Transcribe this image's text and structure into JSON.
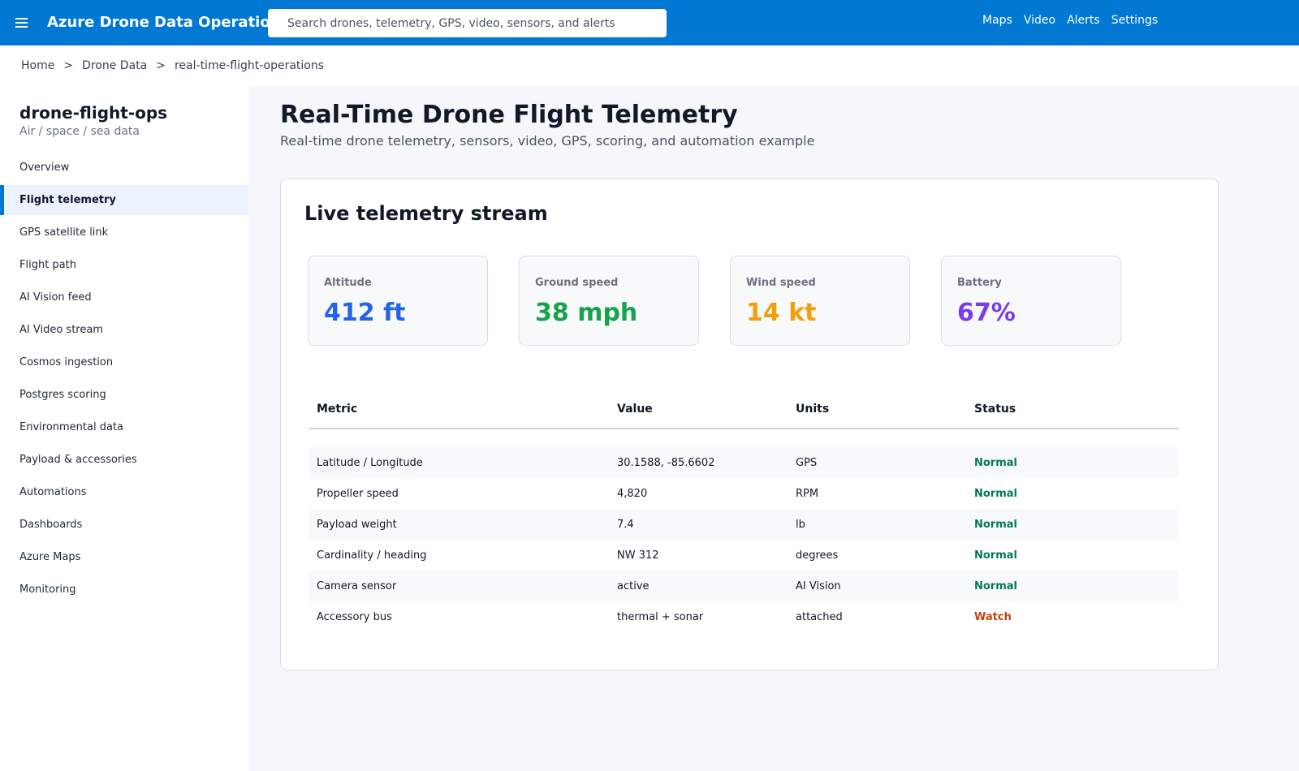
{
  "header": {
    "app_title": "Azure Drone Data Operations",
    "search_placeholder": "Search drones, telemetry, GPS, video, sensors, and alerts",
    "nav": [
      "Maps",
      "Video",
      "Alerts",
      "Settings"
    ],
    "brand_color": "#0078d4"
  },
  "breadcrumb": [
    "Home",
    "Drone Data",
    "real-time-flight-operations"
  ],
  "sidebar": {
    "workspace_name": "drone-flight-ops",
    "workspace_desc": "Air / space / sea data",
    "items": [
      {
        "label": "Overview",
        "active": false
      },
      {
        "label": "Flight telemetry",
        "active": true
      },
      {
        "label": "GPS satellite link",
        "active": false
      },
      {
        "label": "Flight path",
        "active": false
      },
      {
        "label": "AI Vision feed",
        "active": false
      },
      {
        "label": "AI Video stream",
        "active": false
      },
      {
        "label": "Cosmos ingestion",
        "active": false
      },
      {
        "label": "Postgres scoring",
        "active": false
      },
      {
        "label": "Environmental data",
        "active": false
      },
      {
        "label": "Payload & accessories",
        "active": false
      },
      {
        "label": "Automations",
        "active": false
      },
      {
        "label": "Dashboards",
        "active": false
      },
      {
        "label": "Azure Maps",
        "active": false
      },
      {
        "label": "Monitoring",
        "active": false
      }
    ]
  },
  "main": {
    "title": "Real-Time Drone Flight Telemetry",
    "subtitle": "Real-time drone telemetry, sensors, video, GPS, scoring, and automation example",
    "card": {
      "title": "Live telemetry stream",
      "stats": [
        {
          "label": "Altitude",
          "value": "412 ft",
          "color": "#2563eb"
        },
        {
          "label": "Ground speed",
          "value": "38 mph",
          "color": "#16a34a"
        },
        {
          "label": "Wind speed",
          "value": "14 kt",
          "color": "#f59e0b"
        },
        {
          "label": "Battery",
          "value": "67%",
          "color": "#7c3aed"
        }
      ],
      "table": {
        "columns": [
          "Metric",
          "Value",
          "Units",
          "Status"
        ],
        "rows": [
          {
            "metric": "Latitude / Longitude",
            "value": "30.1588, -85.6602",
            "units": "GPS",
            "status": "Normal"
          },
          {
            "metric": "Propeller speed",
            "value": "4,820",
            "units": "RPM",
            "status": "Normal"
          },
          {
            "metric": "Payload weight",
            "value": "7.4",
            "units": "lb",
            "status": "Normal"
          },
          {
            "metric": "Cardinality / heading",
            "value": "NW 312",
            "units": "degrees",
            "status": "Normal"
          },
          {
            "metric": "Camera sensor",
            "value": "active",
            "units": "AI Vision",
            "status": "Normal"
          },
          {
            "metric": "Accessory bus",
            "value": "thermal + sonar",
            "units": "attached",
            "status": "Watch"
          }
        ]
      },
      "status_colors": {
        "Normal": "#047857",
        "Watch": "#c2410c"
      }
    }
  }
}
